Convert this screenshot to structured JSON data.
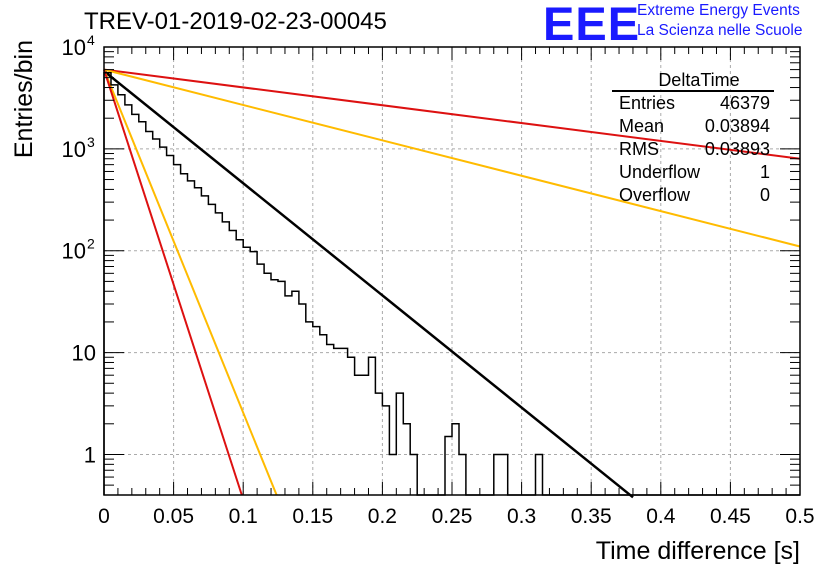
{
  "header": {
    "title": "TREV-01-2019-02-23-00045",
    "logo_text": "EEE",
    "logo_line1": "Extreme Energy Events",
    "logo_line2": "La Scienza nelle Scuole"
  },
  "stats_box": {
    "title": "DeltaTime",
    "rows": [
      {
        "label": "Entries",
        "value": "46379"
      },
      {
        "label": "Mean",
        "value": "0.03894"
      },
      {
        "label": "RMS",
        "value": "0.03893"
      },
      {
        "label": "Underflow",
        "value": "1"
      },
      {
        "label": "Overflow",
        "value": "0"
      }
    ]
  },
  "chart_data": {
    "type": "line",
    "xlabel": "Time difference [s]",
    "ylabel": "Entries/bin",
    "xlim": [
      0,
      0.5
    ],
    "ylim": [
      0.4,
      10000
    ],
    "yscale": "log",
    "grid": true,
    "x_ticks": [
      "0",
      "0.05",
      "0.1",
      "0.15",
      "0.2",
      "0.25",
      "0.3",
      "0.35",
      "0.4",
      "0.45",
      "0.5"
    ],
    "y_ticks": [
      {
        "value": 1,
        "label": "1"
      },
      {
        "value": 10,
        "label": "10"
      },
      {
        "value": 100,
        "label": "10",
        "exp": "2"
      },
      {
        "value": 1000,
        "label": "10",
        "exp": "3"
      },
      {
        "value": 10000,
        "label": "10",
        "exp": "4"
      }
    ],
    "histogram": {
      "color": "#000000",
      "bin_width": 0.005,
      "values": [
        5600,
        4250,
        3400,
        2700,
        2180,
        1850,
        1480,
        1250,
        1040,
        860,
        700,
        570,
        485,
        415,
        345,
        285,
        235,
        192,
        158,
        128,
        108,
        98,
        74,
        60,
        52,
        50,
        36,
        40,
        30,
        20,
        18,
        15,
        12,
        11,
        11,
        9,
        6,
        6,
        9,
        4,
        3,
        1,
        4,
        2,
        1,
        0,
        0,
        0,
        0.2,
        1.5,
        2,
        1,
        0.3,
        0.2,
        0.4,
        0.2,
        1,
        1,
        0.4,
        0,
        0,
        0,
        1,
        0,
        0,
        0,
        0,
        0,
        0,
        0,
        0,
        0,
        0,
        0,
        0,
        0,
        0,
        0,
        0,
        0,
        0,
        0,
        0,
        0,
        0,
        0,
        0,
        0,
        0,
        0,
        0,
        0,
        0,
        0,
        0,
        0,
        0,
        0,
        0,
        0
      ]
    },
    "series": [
      {
        "color": "#000000",
        "x": [
          0,
          0.38
        ],
        "y": [
          5800,
          0.38
        ]
      },
      {
        "color": "#dd1111",
        "x": [
          0,
          0.5
        ],
        "y": [
          6000,
          800
        ]
      },
      {
        "color": "#ffbb00",
        "x": [
          0,
          0.5
        ],
        "y": [
          6000,
          110
        ]
      },
      {
        "color": "#ffbb00",
        "x": [
          0,
          0.124
        ],
        "y": [
          6000,
          0.4
        ]
      },
      {
        "color": "#dd1111",
        "x": [
          0,
          0.099
        ],
        "y": [
          6000,
          0.4
        ]
      }
    ]
  }
}
